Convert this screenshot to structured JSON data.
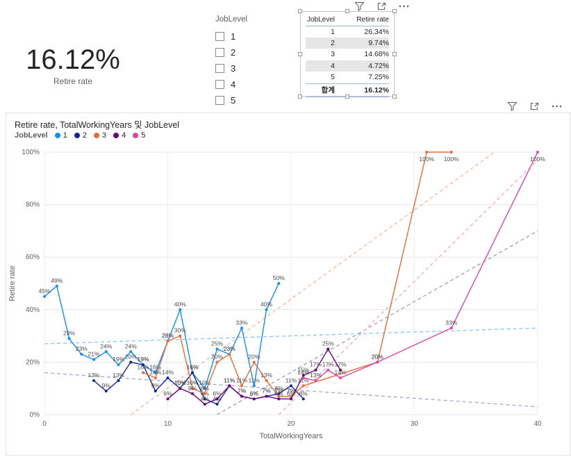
{
  "card": {
    "value": "16.12%",
    "label": "Retire rate"
  },
  "slicer": {
    "title": "JobLevel",
    "items": [
      {
        "label": "1",
        "checked": false
      },
      {
        "label": "2",
        "checked": false
      },
      {
        "label": "3",
        "checked": false
      },
      {
        "label": "4",
        "checked": false
      },
      {
        "label": "5",
        "checked": false
      }
    ]
  },
  "table": {
    "columns": {
      "level": "JobLevel",
      "rate": "Retire rate"
    },
    "rows": [
      {
        "level": "1",
        "rate": "26.34%"
      },
      {
        "level": "2",
        "rate": "9.74%"
      },
      {
        "level": "3",
        "rate": "14.68%"
      },
      {
        "level": "4",
        "rate": "4.72%"
      },
      {
        "level": "5",
        "rate": "7.25%"
      }
    ],
    "total": {
      "label": "합계",
      "rate": "16.12%"
    }
  },
  "visual_header_icons": [
    "filter-funnel-icon",
    "focus-mode-icon",
    "more-options-ellipsis-icon"
  ],
  "chart": {
    "title": "Retire rate, TotalWorkingYears 및 JobLevel",
    "legend_title": "JobLevel",
    "legend": [
      {
        "label": "1",
        "color": "#118DFF"
      },
      {
        "label": "2",
        "color": "#12239E"
      },
      {
        "label": "3",
        "color": "#E66C37"
      },
      {
        "label": "4",
        "color": "#6B007B"
      },
      {
        "label": "5",
        "color": "#E044A7"
      }
    ]
  },
  "chart_data": {
    "type": "line",
    "title": "Retire rate, TotalWorkingYears 및 JobLevel",
    "xlabel": "TotalWorkingYears",
    "ylabel": "Retire rate",
    "xlim": [
      0,
      40
    ],
    "ylim": [
      0,
      100
    ],
    "x_ticks": [
      0,
      10,
      20,
      30,
      40
    ],
    "y_ticks": [
      {
        "value": 0,
        "label": "0%"
      },
      {
        "value": 20,
        "label": "20%"
      },
      {
        "value": 40,
        "label": "40%"
      },
      {
        "value": 60,
        "label": "60%"
      },
      {
        "value": 80,
        "label": "80%"
      },
      {
        "value": 100,
        "label": "100%"
      }
    ],
    "grid": true,
    "legend_position": "top-left",
    "series": [
      {
        "name": "1",
        "color": "#118DFF",
        "x": [
          0,
          1,
          2,
          3,
          4,
          5,
          6,
          7,
          8,
          9,
          10,
          11,
          12,
          13,
          14,
          15,
          16,
          17,
          18,
          19
        ],
        "y": [
          45,
          49,
          29,
          23,
          21,
          24,
          19,
          24,
          19,
          16,
          28,
          40,
          16,
          10,
          25,
          23,
          33,
          11,
          40,
          50
        ]
      },
      {
        "name": "2",
        "color": "#12239E",
        "x": [
          4,
          5,
          6,
          7,
          8,
          9,
          10,
          11,
          12,
          13,
          14,
          15,
          16,
          17,
          18,
          19,
          20,
          21
        ],
        "y": [
          13,
          9,
          13,
          20,
          19,
          9,
          14,
          10,
          16,
          6,
          4,
          11,
          7,
          6,
          7,
          8,
          11,
          6
        ]
      },
      {
        "name": "3",
        "color": "#E66C37",
        "x": [
          8,
          9,
          10,
          11,
          12,
          13,
          14,
          15,
          16,
          17,
          18,
          19,
          20,
          21,
          27,
          31,
          33
        ],
        "y": [
          16,
          14,
          28,
          30,
          10,
          8,
          20,
          23,
          11,
          20,
          13,
          7,
          7,
          11,
          20,
          100,
          100
        ]
      },
      {
        "name": "4",
        "color": "#6B007B",
        "x": [
          10,
          11,
          12,
          13,
          14,
          15,
          16,
          17,
          18,
          19,
          20,
          21,
          22,
          23,
          24
        ],
        "y": [
          6,
          10,
          8,
          4,
          6,
          11,
          7,
          6,
          7,
          6,
          6,
          15,
          17,
          25,
          17
        ]
      },
      {
        "name": "5",
        "color": "#E044A7",
        "x": [
          21,
          22,
          23,
          24,
          27,
          33,
          40
        ],
        "y": [
          14,
          13,
          17,
          14,
          20,
          33,
          100
        ]
      }
    ],
    "trend_lines": [
      {
        "series": "1",
        "color": "#86C3F7",
        "x1": 0,
        "y1": 27,
        "x2": 40,
        "y2": 33
      },
      {
        "series": "2",
        "color": "#A9A3CE",
        "x1": 0,
        "y1": 16,
        "x2": 40,
        "y2": 3
      },
      {
        "series": "3",
        "color": "#F4B8A0",
        "x1": 7,
        "y1": 0,
        "x2": 36.5,
        "y2": 100
      },
      {
        "series": "4",
        "color": "#9C9CB8",
        "x1": 14,
        "y1": 0,
        "x2": 40,
        "y2": 70
      },
      {
        "series": "5",
        "color": "#F3A6D5",
        "x1": 19,
        "y1": 0,
        "x2": 40,
        "y2": 97
      }
    ]
  }
}
